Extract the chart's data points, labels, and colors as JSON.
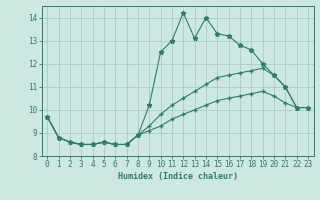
{
  "title": "",
  "xlabel": "Humidex (Indice chaleur)",
  "background_color": "#cce8e0",
  "grid_color": "#aacccc",
  "line_color": "#2e7d6e",
  "xlim": [
    -0.5,
    23.5
  ],
  "ylim": [
    8,
    14.5
  ],
  "yticks": [
    8,
    9,
    10,
    11,
    12,
    13,
    14
  ],
  "xticks": [
    0,
    1,
    2,
    3,
    4,
    5,
    6,
    7,
    8,
    9,
    10,
    11,
    12,
    13,
    14,
    15,
    16,
    17,
    18,
    19,
    20,
    21,
    22,
    23
  ],
  "series1_x": [
    0,
    1,
    2,
    3,
    4,
    5,
    6,
    7,
    8,
    9,
    10,
    11,
    12,
    13,
    14,
    15,
    16,
    17,
    18,
    19,
    20,
    21,
    22,
    23
  ],
  "series1_y": [
    9.7,
    8.8,
    8.6,
    8.5,
    8.5,
    8.6,
    8.5,
    8.5,
    8.9,
    10.2,
    12.5,
    13.0,
    14.2,
    13.1,
    14.0,
    13.3,
    13.2,
    12.8,
    12.6,
    12.0,
    11.5,
    11.0,
    10.1,
    10.1
  ],
  "series2_x": [
    0,
    1,
    2,
    3,
    4,
    5,
    6,
    7,
    8,
    9,
    10,
    11,
    12,
    13,
    14,
    15,
    16,
    17,
    18,
    19,
    20,
    21,
    22,
    23
  ],
  "series2_y": [
    9.7,
    8.8,
    8.6,
    8.5,
    8.5,
    8.6,
    8.5,
    8.5,
    8.9,
    9.3,
    9.8,
    10.2,
    10.5,
    10.8,
    11.1,
    11.4,
    11.5,
    11.6,
    11.7,
    11.8,
    11.5,
    11.0,
    10.1,
    10.1
  ],
  "series3_x": [
    0,
    1,
    2,
    3,
    4,
    5,
    6,
    7,
    8,
    9,
    10,
    11,
    12,
    13,
    14,
    15,
    16,
    17,
    18,
    19,
    20,
    21,
    22,
    23
  ],
  "series3_y": [
    9.7,
    8.8,
    8.6,
    8.5,
    8.5,
    8.6,
    8.5,
    8.5,
    8.9,
    9.1,
    9.3,
    9.6,
    9.8,
    10.0,
    10.2,
    10.4,
    10.5,
    10.6,
    10.7,
    10.8,
    10.6,
    10.3,
    10.1,
    10.1
  ],
  "tick_fontsize": 5.5,
  "xlabel_fontsize": 6.0
}
